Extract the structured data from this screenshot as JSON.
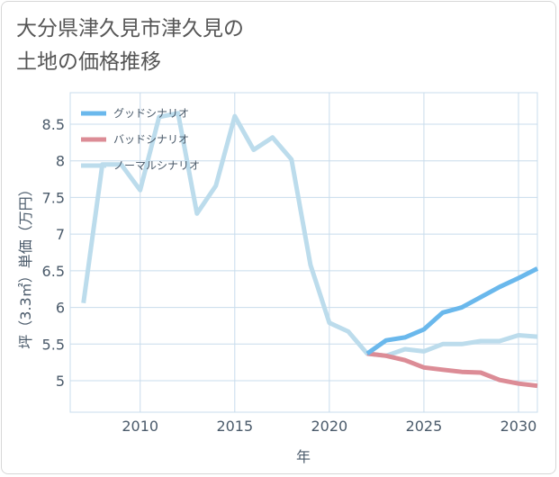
{
  "page": {
    "title": "大分県津久見市津久見の\n土地の価格推移"
  },
  "colors": {
    "good": "#6ab8ec",
    "bad": "#dc8c96",
    "normal": "#bcdcec",
    "grid": "#c8dcec",
    "text": "#4a5a6a",
    "title": "#555555"
  },
  "chart_data": {
    "type": "line",
    "xlabel": "年",
    "ylabel": "坪（3.3㎡）単価（万円）",
    "xlim": [
      2006.3,
      2031
    ],
    "ylim": [
      4.57,
      8.93
    ],
    "xticks": [
      2010,
      2015,
      2020,
      2025,
      2030
    ],
    "yticks": [
      5,
      5.5,
      6,
      6.5,
      7,
      7.5,
      8,
      8.5
    ],
    "grid": true,
    "legend_position": "top-left",
    "series": [
      {
        "name": "グッドシナリオ",
        "color": "#6ab8ec",
        "points": [
          [
            2022,
            5.37
          ],
          [
            2023,
            5.55
          ],
          [
            2024,
            5.59
          ],
          [
            2025,
            5.7
          ],
          [
            2026,
            5.93
          ],
          [
            2027,
            6.0
          ],
          [
            2028,
            6.14
          ],
          [
            2029,
            6.28
          ],
          [
            2030,
            6.4
          ],
          [
            2031,
            6.53
          ]
        ]
      },
      {
        "name": "バッドシナリオ",
        "color": "#dc8c96",
        "points": [
          [
            2022,
            5.37
          ],
          [
            2023,
            5.34
          ],
          [
            2024,
            5.28
          ],
          [
            2025,
            5.18
          ],
          [
            2026,
            5.15
          ],
          [
            2027,
            5.12
          ],
          [
            2028,
            5.11
          ],
          [
            2029,
            5.01
          ],
          [
            2030,
            4.96
          ],
          [
            2031,
            4.93
          ]
        ]
      },
      {
        "name": "ノーマルシナリオ",
        "color": "#bcdcec",
        "points": [
          [
            2007,
            6.06
          ],
          [
            2008,
            7.95
          ],
          [
            2009,
            7.95
          ],
          [
            2010,
            7.6
          ],
          [
            2011,
            8.6
          ],
          [
            2012,
            8.65
          ],
          [
            2013,
            7.28
          ],
          [
            2014,
            7.66
          ],
          [
            2015,
            8.61
          ],
          [
            2016,
            8.15
          ],
          [
            2017,
            8.32
          ],
          [
            2018,
            8.02
          ],
          [
            2019,
            6.58
          ],
          [
            2020,
            5.79
          ],
          [
            2021,
            5.67
          ],
          [
            2022,
            5.37
          ],
          [
            2023,
            5.34
          ],
          [
            2024,
            5.43
          ],
          [
            2025,
            5.4
          ],
          [
            2026,
            5.5
          ],
          [
            2027,
            5.5
          ],
          [
            2028,
            5.54
          ],
          [
            2029,
            5.54
          ],
          [
            2030,
            5.62
          ],
          [
            2031,
            5.6
          ]
        ]
      }
    ]
  }
}
